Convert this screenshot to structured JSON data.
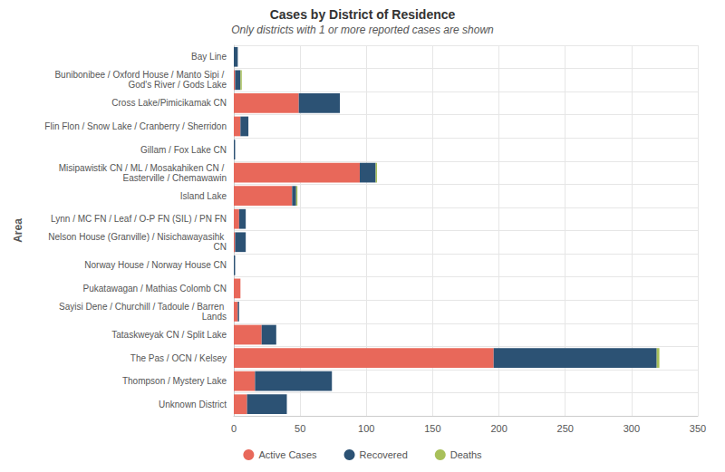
{
  "chart_data": {
    "type": "bar",
    "title": "Cases by District of Residence",
    "subtitle": "Only districts with 1 or more reported cases are shown",
    "y_label": "Area",
    "orientation": "horizontal",
    "stacked": true,
    "grid": true,
    "legend": "bottom",
    "categories": [
      "Bay Line",
      "Bunibonibee / Oxford House / Manto Sipi / God's River / Gods Lake",
      "Cross Lake/Pimicikamak CN",
      "Flin Flon / Snow Lake / Cranberry / Sherridon",
      "Gillam / Fox Lake CN",
      "Misipawistik CN / ML / Mosakahiken CN / Easterville / Chemawawin",
      "Island Lake",
      "Lynn / MC FN / Leaf / O-P FN (SIL) / PN FN",
      "Nelson House (Granville) / Nisichawayasihk CN",
      "Norway House / Norway House CN",
      "Pukatawagan / Mathias Colomb CN",
      "Sayisi Dene / Churchill / Tadoule / Barren Lands",
      "Tataskweyak CN / Split Lake",
      "The Pas / OCN / Kelsey",
      "Thompson / Mystery Lake",
      "Unknown District"
    ],
    "series": [
      {
        "name": "Active Cases",
        "color": "#e8685a",
        "values": [
          0,
          1,
          49,
          5,
          0,
          95,
          44,
          4,
          1,
          0,
          5,
          3,
          21,
          196,
          16,
          10
        ]
      },
      {
        "name": "Recovered",
        "color": "#2c5274",
        "values": [
          3,
          4,
          31,
          6,
          1,
          12,
          3,
          5,
          8,
          1,
          0,
          1,
          11,
          123,
          58,
          30
        ]
      },
      {
        "name": "Deaths",
        "color": "#a8c05a",
        "values": [
          0,
          1,
          0,
          0,
          0,
          1,
          1,
          0,
          0,
          0,
          0,
          0,
          0,
          2,
          0,
          0
        ]
      }
    ],
    "xlim": [
      0,
      350
    ],
    "xticks": [
      0,
      50,
      100,
      150,
      200,
      250,
      300,
      350
    ]
  }
}
